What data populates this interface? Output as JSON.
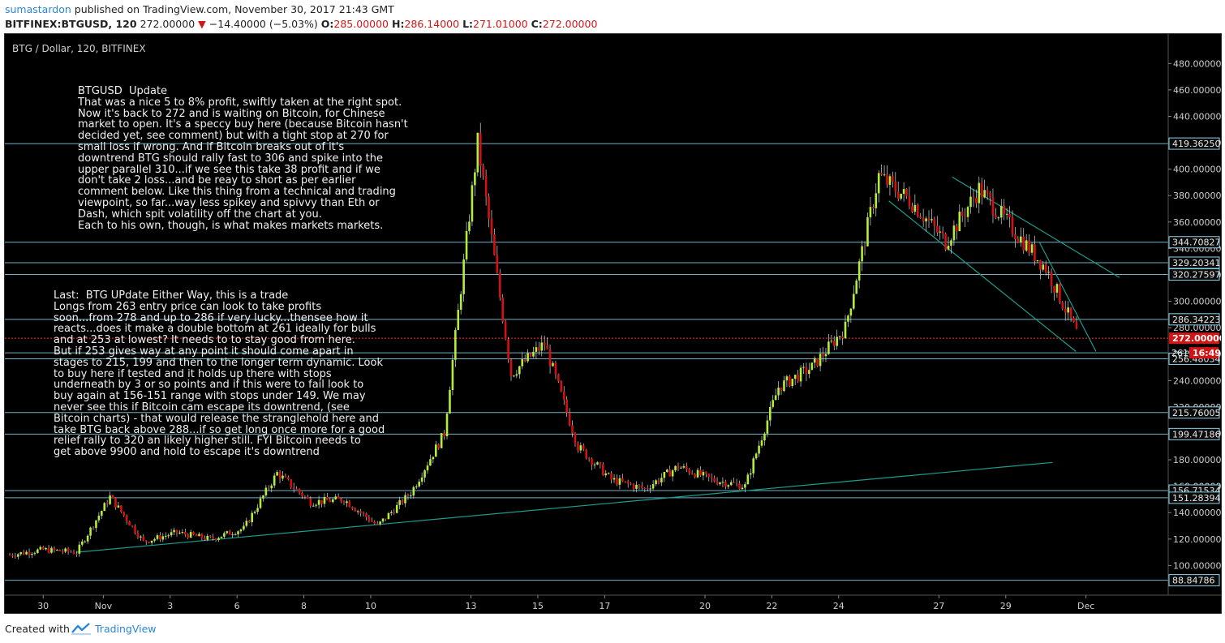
{
  "header": {
    "author": "sumastardon",
    "published": "published on TradingView.com, November 30, 2017 21:43 GMT",
    "symbol": "BITFINEX:BTGUSD, 120",
    "last": "272.00000",
    "arrow": "▼",
    "change": "−14.40000 (−5.03%)",
    "o_label": "O:",
    "o": "285.00000",
    "h_label": "H:",
    "h": "286.14000",
    "l_label": "L:",
    "l": "271.01000",
    "c_label": "C:",
    "c": "272.00000"
  },
  "footer": {
    "created": "Created with",
    "brand": "TradingView"
  },
  "chart_data": {
    "type": "candlestick",
    "title": "BTG / Dollar, 120, BITFINEX",
    "ylim": [
      80,
      490
    ],
    "price_axis_ticks": [
      "100.00000",
      "120.00000",
      "140.00000",
      "160.00000",
      "180.00000",
      "200.00000",
      "220.00000",
      "240.00000",
      "260.00000",
      "280.00000",
      "300.00000",
      "320.00000",
      "340.00000",
      "360.00000",
      "380.00000",
      "400.00000",
      "420.00000",
      "440.00000",
      "460.00000",
      "480.00000"
    ],
    "time_axis_labels": [
      "30",
      "Nov",
      "3",
      "6",
      "8",
      "10",
      "13",
      "15",
      "17",
      "20",
      "22",
      "24",
      "27",
      "29",
      "Dec"
    ],
    "horizontal_levels": [
      {
        "value": 419.3625,
        "label": "419.36250"
      },
      {
        "value": 344.70827,
        "label": "344.70827"
      },
      {
        "value": 329.20341,
        "label": "329.20341"
      },
      {
        "value": 320.27597,
        "label": "320.27597"
      },
      {
        "value": 286.34223,
        "label": "286.34223"
      },
      {
        "value": 261.0,
        "label": "261"
      },
      {
        "value": 256.48034,
        "label": "256.48034"
      },
      {
        "value": 215.76005,
        "label": "215.76005"
      },
      {
        "value": 199.47186,
        "label": "199.47186"
      },
      {
        "value": 156.71534,
        "label": "156.71534"
      },
      {
        "value": 151.28394,
        "label": "151.28394"
      },
      {
        "value": 88.84786,
        "label": "88.84786"
      }
    ],
    "current_price": {
      "value": 272.0,
      "label": "272.00000",
      "countdown": "16:49"
    },
    "colors": {
      "up": "#b4ec3a",
      "down": "#d80f0f",
      "level": "#8ad0e8",
      "trend": "#1c9c8c",
      "current": "#ff3030"
    },
    "anchors": [
      {
        "date": "Oct 29",
        "v": 108
      },
      {
        "date": "Oct 30",
        "v": 112
      },
      {
        "date": "Oct 31",
        "v": 110
      },
      {
        "date": "Nov 1",
        "v": 152
      },
      {
        "date": "Nov 2",
        "v": 118
      },
      {
        "date": "Nov 3",
        "v": 125
      },
      {
        "date": "Nov 4",
        "v": 120
      },
      {
        "date": "Nov 5",
        "v": 128
      },
      {
        "date": "Nov 6",
        "v": 170
      },
      {
        "date": "Nov 7",
        "v": 148
      },
      {
        "date": "Nov 8",
        "v": 150
      },
      {
        "date": "Nov 9",
        "v": 130
      },
      {
        "date": "Nov 10",
        "v": 155
      },
      {
        "date": "Nov 11",
        "v": 200
      },
      {
        "date": "Nov 12",
        "v": 420
      },
      {
        "date": "Nov 13",
        "v": 245
      },
      {
        "date": "Nov 14",
        "v": 268
      },
      {
        "date": "Nov 15",
        "v": 190
      },
      {
        "date": "Nov 16",
        "v": 165
      },
      {
        "date": "Nov 17",
        "v": 158
      },
      {
        "date": "Nov 18",
        "v": 175
      },
      {
        "date": "Nov 19",
        "v": 165
      },
      {
        "date": "Nov 20",
        "v": 160
      },
      {
        "date": "Nov 21",
        "v": 235
      },
      {
        "date": "Nov 22",
        "v": 250
      },
      {
        "date": "Nov 23",
        "v": 280
      },
      {
        "date": "Nov 24",
        "v": 395
      },
      {
        "date": "Nov 25",
        "v": 375
      },
      {
        "date": "Nov 26",
        "v": 345
      },
      {
        "date": "Nov 27",
        "v": 385
      },
      {
        "date": "Nov 28",
        "v": 355
      },
      {
        "date": "Nov 29",
        "v": 325
      },
      {
        "date": "Nov 30",
        "v": 272
      }
    ]
  },
  "notes": {
    "update": "BTGUSD  Update\nThat was a nice 5 to 8% profit, swiftly taken at the right spot.\nNow it's back to 272 and is waiting on Bitcoin, for Chinese\nmarket to open. It's a speccy buy here (because Bitcoin hasn't\ndecided yet, see comment) but with a tight stop at 270 for\nsmall loss if wrong. And if Bitcoin breaks out of it's\ndowntrend BTG should rally fast to 306 and spike into the\nupper parallel 310...if we see this take 38 profit and if we\ndon't take 2 loss...and be reay to short as per earlier\ncomment below. Like this thing from a technical and trading\nviewpoint, so far...way less spikey and spivvy than Eth or\nDash, which spit volatility off the chart at you.\nEach to his own, though, is what makes markets markets.",
    "last": "Last:  BTG UPdate Either Way, this is a trade\nLongs from 263 entry price can look to take profits\nsoon...from 278 and up to 286 if very lucky...thensee how it\nreacts...does it make a double bottom at 261 ideally for bulls\nand at 253 at lowest? It needs to to stay good from here.\nBut if 253 gives way at any point it should come apart in\nstages to 215, 199 and then to the longer term dynamic. Look\nto buy here if tested and it holds up there with stops\nunderneath by 3 or so points and if this were to fail look to\nbuy again at 156-151 range with stops under 149. We may\nnever see this if Bitcoin cam escape its downtrend, (see\nBitcoin charts) - that would release the stranglehold here and\ntake BTG back above 288...if so get long once more for a good\nrelief rally to 320 an likely higher still. FYI Bitcoin needs to\nget above 9900 and hold to escape it's downtrend"
  }
}
